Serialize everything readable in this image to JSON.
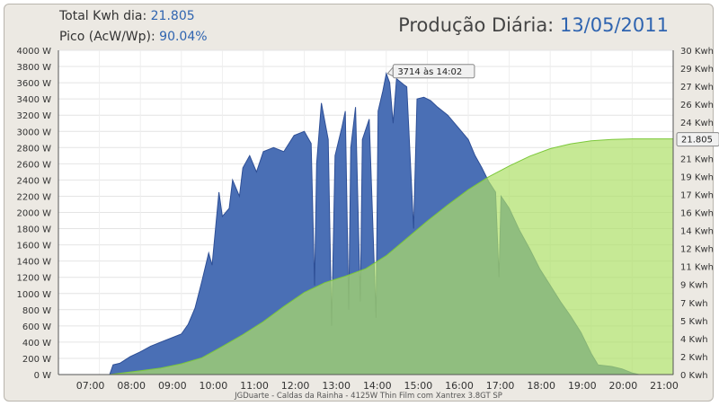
{
  "header": {
    "total_label": "Total Kwh dia:",
    "total_value": "21.805",
    "peak_label": "Pico (AcW/Wp):",
    "peak_value": "90.04%",
    "title_label": "Produção Diária:",
    "title_date": "13/05/2011"
  },
  "chart_data": {
    "type": "area",
    "title": "Produção Diária: 13/05/2011",
    "footer": "JGDuarte  -  Caldas da Rainha  -  4125W Thin Film com Xantrex 3.8GT SP",
    "x_ticks": [
      "07:00",
      "08:00",
      "09:00",
      "10:00",
      "11:00",
      "12:00",
      "13:00",
      "14:00",
      "15:00",
      "16:00",
      "17:00",
      "18:00",
      "19:00",
      "20:00",
      "21:00"
    ],
    "x_range": [
      "06:00",
      "21:00"
    ],
    "y_left": {
      "unit": "W",
      "range": [
        0,
        4000
      ],
      "ticks": [
        "0 W",
        "200 W",
        "400 W",
        "600 W",
        "800 W",
        "1000 W",
        "1200 W",
        "1400 W",
        "1600 W",
        "1800 W",
        "2000 W",
        "2200 W",
        "2400 W",
        "2600 W",
        "2800 W",
        "3000 W",
        "3200 W",
        "3400 W",
        "3600 W",
        "3800 W",
        "4000 W"
      ]
    },
    "y_right": {
      "unit": "Kwh",
      "range": [
        0,
        30
      ],
      "ticks": [
        "0 Kwh",
        "2 Kwh",
        "4 Kwh",
        "5 Kwh",
        "7 Kwh",
        "9 Kwh",
        "11 Kwh",
        "12 Kwh",
        "14 Kwh",
        "16 Kwh",
        "17 Kwh",
        "19 Kwh",
        "21 Kwh",
        "22 Kwh",
        "24 Kwh",
        "26 Kwh",
        "27 Kwh",
        "29 Kwh",
        "30 Kwh"
      ]
    },
    "grid": true,
    "series": [
      {
        "type": "area",
        "axis": "left",
        "color": "#4a6fb5",
        "points": [
          [
            "07:15",
            0
          ],
          [
            "07:20",
            120
          ],
          [
            "07:30",
            140
          ],
          [
            "07:45",
            220
          ],
          [
            "08:00",
            280
          ],
          [
            "08:15",
            350
          ],
          [
            "08:30",
            400
          ],
          [
            "08:45",
            450
          ],
          [
            "09:00",
            500
          ],
          [
            "09:10",
            620
          ],
          [
            "09:20",
            820
          ],
          [
            "09:30",
            1150
          ],
          [
            "09:40",
            1500
          ],
          [
            "09:45",
            1350
          ],
          [
            "09:50",
            1800
          ],
          [
            "09:55",
            2250
          ],
          [
            "10:00",
            1950
          ],
          [
            "10:10",
            2050
          ],
          [
            "10:15",
            2400
          ],
          [
            "10:25",
            2200
          ],
          [
            "10:30",
            2550
          ],
          [
            "10:40",
            2700
          ],
          [
            "10:50",
            2500
          ],
          [
            "11:00",
            2750
          ],
          [
            "11:15",
            2800
          ],
          [
            "11:30",
            2750
          ],
          [
            "11:45",
            2950
          ],
          [
            "12:00",
            3000
          ],
          [
            "12:10",
            2850
          ],
          [
            "12:15",
            1100
          ],
          [
            "12:18",
            2600
          ],
          [
            "12:25",
            3350
          ],
          [
            "12:35",
            2900
          ],
          [
            "12:40",
            600
          ],
          [
            "12:45",
            2700
          ],
          [
            "12:55",
            3050
          ],
          [
            "13:00",
            3250
          ],
          [
            "13:05",
            800
          ],
          [
            "13:08",
            2800
          ],
          [
            "13:15",
            3300
          ],
          [
            "13:22",
            900
          ],
          [
            "13:25",
            2900
          ],
          [
            "13:35",
            3150
          ],
          [
            "13:45",
            700
          ],
          [
            "13:48",
            3250
          ],
          [
            "13:55",
            3500
          ],
          [
            "14:00",
            3714
          ],
          [
            "14:05",
            3600
          ],
          [
            "14:10",
            3100
          ],
          [
            "14:15",
            3650
          ],
          [
            "14:25",
            3580
          ],
          [
            "14:30",
            3550
          ],
          [
            "14:40",
            1800
          ],
          [
            "14:45",
            3400
          ],
          [
            "14:55",
            3420
          ],
          [
            "15:05",
            3380
          ],
          [
            "15:15",
            3300
          ],
          [
            "15:30",
            3200
          ],
          [
            "15:45",
            3050
          ],
          [
            "16:00",
            2900
          ],
          [
            "16:10",
            2700
          ],
          [
            "16:20",
            2550
          ],
          [
            "16:30",
            2380
          ],
          [
            "16:40",
            2250
          ],
          [
            "16:45",
            1200
          ],
          [
            "16:48",
            2200
          ],
          [
            "17:00",
            2050
          ],
          [
            "17:15",
            1780
          ],
          [
            "17:30",
            1550
          ],
          [
            "17:45",
            1300
          ],
          [
            "18:00",
            1100
          ],
          [
            "18:15",
            900
          ],
          [
            "18:30",
            720
          ],
          [
            "18:45",
            520
          ],
          [
            "19:00",
            260
          ],
          [
            "19:10",
            120
          ],
          [
            "19:30",
            100
          ],
          [
            "19:45",
            70
          ],
          [
            "20:00",
            20
          ],
          [
            "20:10",
            0
          ]
        ]
      },
      {
        "type": "area",
        "axis": "right",
        "color": "#aee068",
        "points": [
          [
            "07:15",
            0
          ],
          [
            "08:00",
            0.35
          ],
          [
            "08:30",
            0.6
          ],
          [
            "09:00",
            1.0
          ],
          [
            "09:30",
            1.55
          ],
          [
            "10:00",
            2.6
          ],
          [
            "10:30",
            3.7
          ],
          [
            "11:00",
            4.9
          ],
          [
            "11:30",
            6.3
          ],
          [
            "12:00",
            7.6
          ],
          [
            "12:30",
            8.5
          ],
          [
            "13:00",
            9.1
          ],
          [
            "13:30",
            9.8
          ],
          [
            "14:00",
            11.0
          ],
          [
            "14:30",
            12.6
          ],
          [
            "15:00",
            14.2
          ],
          [
            "15:30",
            15.7
          ],
          [
            "16:00",
            17.1
          ],
          [
            "16:30",
            18.3
          ],
          [
            "17:00",
            19.3
          ],
          [
            "17:30",
            20.2
          ],
          [
            "18:00",
            20.9
          ],
          [
            "18:30",
            21.35
          ],
          [
            "19:00",
            21.62
          ],
          [
            "19:30",
            21.75
          ],
          [
            "20:00",
            21.805
          ],
          [
            "21:00",
            21.805
          ]
        ]
      }
    ],
    "annotations": [
      {
        "label": "3714 às 14:02",
        "x": "14:02",
        "y": 3714,
        "axis": "left"
      },
      {
        "label": "21.805",
        "x": "21:00",
        "y": 21.805,
        "axis": "right"
      }
    ]
  }
}
